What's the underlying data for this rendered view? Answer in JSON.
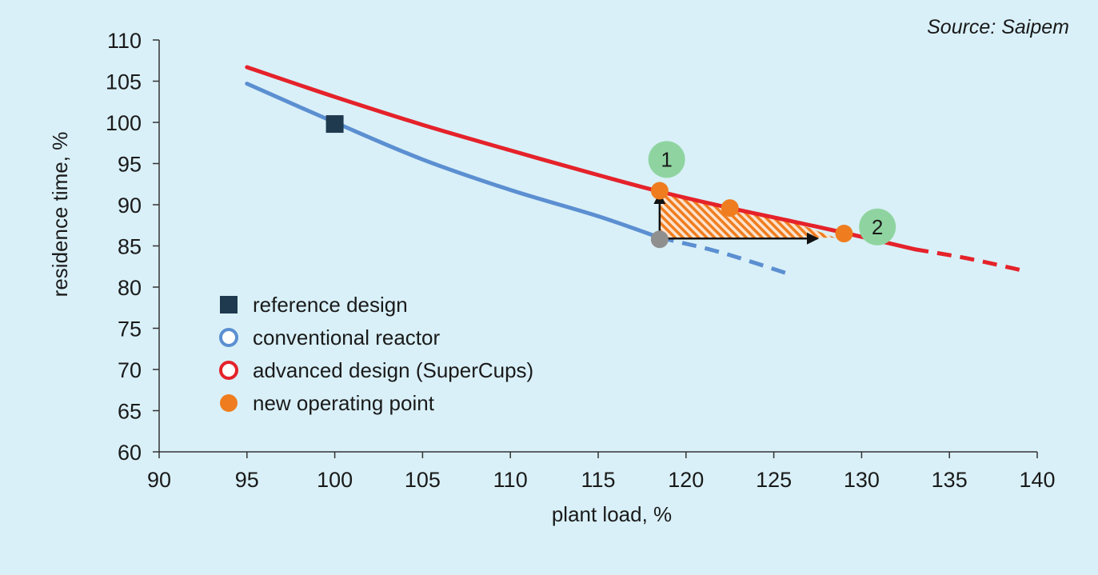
{
  "source": "Source: Saipem",
  "chart_data": {
    "type": "line",
    "xlabel": "plant load, %",
    "ylabel": "residence time, %",
    "xlim": [
      90,
      140
    ],
    "ylim": [
      60,
      110
    ],
    "xticks": [
      "90",
      "95",
      "100",
      "105",
      "110",
      "115",
      "120",
      "125",
      "130",
      "135",
      "140"
    ],
    "yticks": [
      "60",
      "65",
      "70",
      "75",
      "80",
      "85",
      "90",
      "95",
      "100",
      "105",
      "110"
    ],
    "series": [
      {
        "name": "conventional reactor",
        "color": "#5b8fd1",
        "solid": [
          [
            95,
            104.7
          ],
          [
            100,
            100
          ],
          [
            105,
            95.5
          ],
          [
            110,
            91.8
          ],
          [
            115,
            88.6
          ],
          [
            118.5,
            86
          ]
        ],
        "dashed": [
          [
            118.5,
            86
          ],
          [
            122,
            84.2
          ],
          [
            126,
            81.5
          ]
        ]
      },
      {
        "name": "advanced design (SuperCups)",
        "color": "#e5222a",
        "solid": [
          [
            95,
            106.7
          ],
          [
            100,
            103.1
          ],
          [
            105,
            99.7
          ],
          [
            110,
            96.6
          ],
          [
            115,
            93.6
          ],
          [
            118.5,
            91.6
          ],
          [
            122.5,
            89.6
          ],
          [
            126,
            88
          ],
          [
            129,
            86.6
          ],
          [
            133,
            84.6
          ]
        ],
        "dashed": [
          [
            133,
            84.6
          ],
          [
            136,
            83.5
          ],
          [
            139,
            82.1
          ]
        ]
      }
    ],
    "reference_design": {
      "name": "reference design",
      "x": 100,
      "y": 99.8,
      "color": "#1f3a4f"
    },
    "start_point": {
      "x": 118.5,
      "y": 85.8,
      "color": "#8f8f8f"
    },
    "new_operating_points": {
      "name": "new operating point",
      "color": "#ef7d1f",
      "points": [
        [
          118.5,
          91.7
        ],
        [
          122.5,
          89.6
        ],
        [
          129,
          86.5
        ]
      ]
    },
    "hatched_region": [
      [
        118.5,
        86
      ],
      [
        118.5,
        91.7
      ],
      [
        122.5,
        89.6
      ],
      [
        126,
        88
      ],
      [
        128.5,
        86
      ]
    ],
    "arrows": [
      {
        "from": [
          118.5,
          85.8
        ],
        "to": [
          118.5,
          91.4
        ]
      },
      {
        "from": [
          118.5,
          85.9
        ],
        "to": [
          127.5,
          85.9
        ]
      }
    ],
    "badges": [
      {
        "label": "1",
        "x": 118.9,
        "y": 95.5,
        "color": "#8fd4a0"
      },
      {
        "label": "2",
        "x": 130.9,
        "y": 87.3,
        "color": "#8fd4a0"
      }
    ],
    "legend": {
      "position": "bottom-left",
      "entries": [
        {
          "label": "reference design",
          "marker": "square",
          "color": "#1f3a4f"
        },
        {
          "label": "conventional reactor",
          "marker": "ring",
          "color": "#5b8fd1"
        },
        {
          "label": "advanced design (SuperCups)",
          "marker": "ring",
          "color": "#e5222a"
        },
        {
          "label": "new operating point",
          "marker": "dot",
          "color": "#ef7d1f"
        }
      ]
    }
  }
}
